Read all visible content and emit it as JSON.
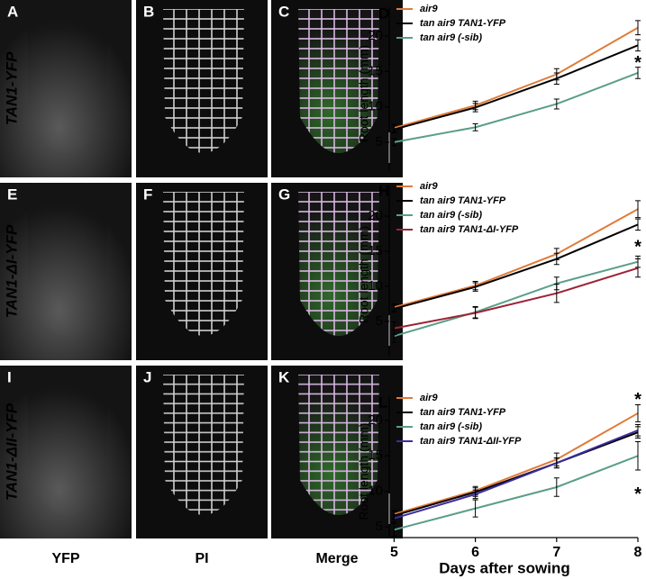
{
  "figure": {
    "row_labels": [
      "TAN1-YFP",
      "TAN1-ΔI-YFP",
      "TAN1-ΔII-YFP"
    ],
    "column_labels": [
      "YFP",
      "PI",
      "Merge"
    ],
    "image_panels": [
      [
        "A",
        "B",
        "C"
      ],
      [
        "E",
        "F",
        "G"
      ],
      [
        "I",
        "J",
        "K"
      ]
    ]
  },
  "chart_data": [
    {
      "type": "line",
      "panel": "D",
      "y_label": "Root length (mm)",
      "x": [
        5,
        6,
        7,
        8
      ],
      "xlim": [
        4.94,
        8.0
      ],
      "ylim": [
        0.9,
        24.1
      ],
      "yticks": [
        5,
        10,
        15,
        20
      ],
      "series": [
        {
          "name": "air9",
          "color": "#e07b39",
          "values": [
            7.0,
            10.2,
            14.6,
            21.2
          ],
          "errors": [
            0.5,
            0.6,
            0.8,
            1.0
          ]
        },
        {
          "name": "tan air9 TAN1-YFP",
          "color": "#000000",
          "values": [
            6.8,
            9.9,
            14.0,
            18.7
          ],
          "errors": [
            0.5,
            0.6,
            0.8,
            0.8
          ]
        },
        {
          "name": "tan air9 (-sib)",
          "color": "#5a9e8a",
          "values": [
            5.0,
            7.1,
            10.4,
            14.8
          ],
          "errors": [
            0.5,
            0.5,
            0.7,
            0.8
          ]
        }
      ],
      "annotations": [
        {
          "text": "*",
          "x": 8,
          "y": 16.6
        }
      ]
    },
    {
      "type": "line",
      "panel": "H",
      "y_label": "Root length (mm)",
      "x": [
        5,
        6,
        7,
        8
      ],
      "xlim": [
        4.94,
        8.0
      ],
      "ylim": [
        0.1,
        24.5
      ],
      "yticks": [
        5,
        10,
        15,
        20
      ],
      "series": [
        {
          "name": "air9",
          "color": "#e07b39",
          "values": [
            7.0,
            10.1,
            14.6,
            21.0
          ],
          "errors": [
            0.5,
            0.6,
            0.8,
            1.2
          ]
        },
        {
          "name": "tan air9 TAN1-YFP",
          "color": "#000000",
          "values": [
            6.8,
            9.9,
            13.9,
            18.8
          ],
          "errors": [
            0.5,
            0.6,
            0.8,
            0.8
          ]
        },
        {
          "name": "tan air9 (-sib)",
          "color": "#5a9e8a",
          "values": [
            2.9,
            6.3,
            10.4,
            13.5
          ],
          "errors": [
            0.9,
            0.8,
            0.9,
            0.8
          ]
        },
        {
          "name": "tan air9 TAN1-ΔI-YFP",
          "color": "#9b2335",
          "values": [
            4.0,
            6.2,
            9.0,
            12.6
          ],
          "errors": [
            0.9,
            0.8,
            1.3,
            1.3
          ]
        }
      ],
      "annotations": [
        {
          "text": "*",
          "x": 8,
          "y": 16.0
        }
      ]
    },
    {
      "type": "line",
      "panel": "L",
      "y_label": "Root length (mm)",
      "x_label": "Days after sowing",
      "x": [
        5,
        6,
        7,
        8
      ],
      "xlim": [
        4.94,
        8.0
      ],
      "ylim": [
        3.5,
        23.4
      ],
      "yticks": [
        5,
        10,
        15,
        20
      ],
      "xticks": [
        5,
        6,
        7,
        8
      ],
      "series": [
        {
          "name": "air9",
          "color": "#e07b39",
          "values": [
            6.8,
            10.1,
            14.5,
            21.0
          ],
          "errors": [
            0.5,
            0.6,
            0.9,
            1.2
          ]
        },
        {
          "name": "tan air9 TAN1-YFP",
          "color": "#000000",
          "values": [
            6.6,
            9.9,
            14.0,
            18.3
          ],
          "errors": [
            0.5,
            0.6,
            0.7,
            0.8
          ]
        },
        {
          "name": "tan air9 (-sib)",
          "color": "#5a9e8a",
          "values": [
            4.6,
            7.6,
            10.6,
            15.0
          ],
          "errors": [
            0.9,
            1.2,
            1.3,
            2.0
          ]
        },
        {
          "name": "tan air9 TAN1-ΔII-YFP",
          "color": "#3b2d9e",
          "values": [
            6.2,
            9.6,
            14.0,
            18.6
          ],
          "errors": [
            0.5,
            0.6,
            0.7,
            0.8
          ]
        }
      ],
      "annotations": [
        {
          "text": "*",
          "x": 8,
          "y": 23.3
        },
        {
          "text": "*",
          "x": 8,
          "y": 10.0
        }
      ]
    }
  ]
}
